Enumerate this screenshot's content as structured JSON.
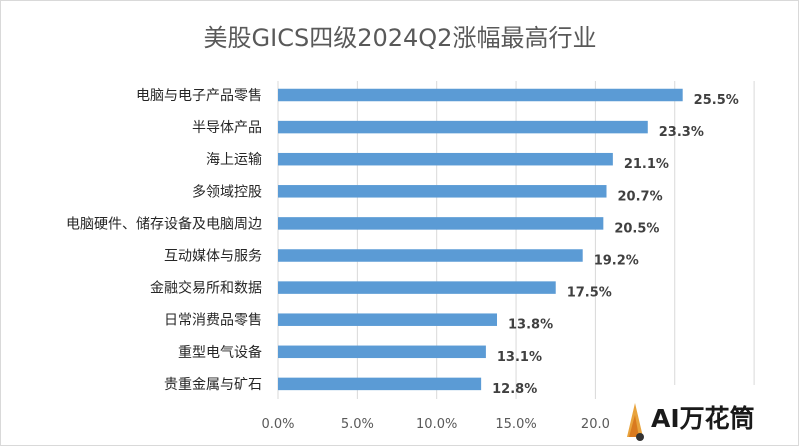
{
  "chart_data": {
    "type": "bar",
    "orientation": "horizontal",
    "title": "美股GICS四级2024Q2涨幅最高行业",
    "categories": [
      "电脑与电子产品零售",
      "半导体产品",
      "海上运输",
      "多领域控股",
      "电脑硬件、储存设备及电脑周边",
      "互动媒体与服务",
      "金融交易所和数据",
      "日常消费品零售",
      "重型电气设备",
      "贵重金属与矿石"
    ],
    "values": [
      25.5,
      23.3,
      21.1,
      20.7,
      20.5,
      19.2,
      17.5,
      13.8,
      13.1,
      12.8
    ],
    "value_labels": [
      "25.5%",
      "23.3%",
      "21.1%",
      "20.7%",
      "20.5%",
      "19.2%",
      "17.5%",
      "13.8%",
      "13.1%",
      "12.8%"
    ],
    "xlim": [
      0,
      30
    ],
    "x_ticks": [
      "0.0%",
      "5.0%",
      "10.0%",
      "15.0%",
      "20.0"
    ],
    "grid": "vertical",
    "bar_color": "#5b9bd5",
    "xlabel": "",
    "ylabel": ""
  },
  "watermark": {
    "text": "AI万花筒",
    "accent_color": "#e8a33d"
  }
}
